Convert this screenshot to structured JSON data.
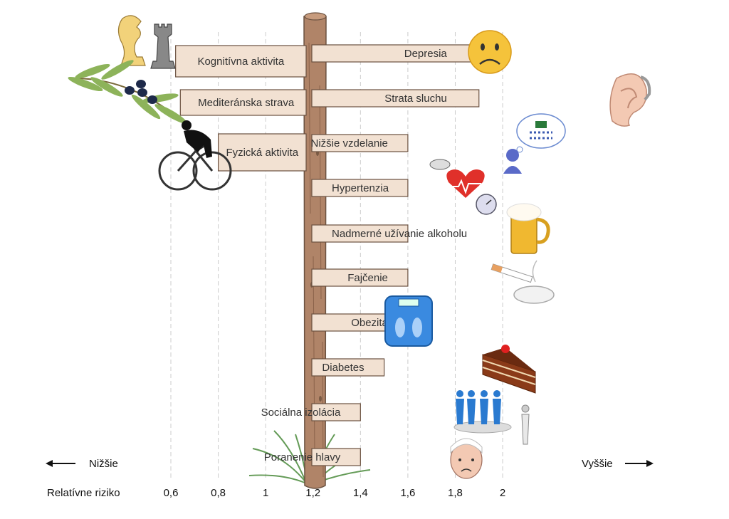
{
  "chart_data": {
    "type": "bar",
    "xlabel": "Relatívne riziko",
    "baseline": 1,
    "xlim": [
      0.6,
      2
    ],
    "xticks": [
      "0,6",
      "0,8",
      "1",
      "1,2",
      "1,4",
      "1,6",
      "1,8",
      "2"
    ],
    "xtick_values": [
      0.6,
      0.8,
      1,
      1.2,
      1.4,
      1.6,
      1.8,
      2
    ],
    "grid": true,
    "direction_labels": {
      "lower": "Nižšie",
      "higher": "Vyššie"
    },
    "colors": {
      "bar_fill": "#f2e1d2",
      "bar_stroke": "#6a5140",
      "grid": "#cccccc",
      "post": "#b08468"
    },
    "bars": [
      {
        "label": "Kognitívna aktivita",
        "value": 0.62,
        "icon": "chess-icon"
      },
      {
        "label": "Mediteránska strava",
        "value": 0.64,
        "icon": "olive-branch-icon"
      },
      {
        "label": "Fyzická aktivita",
        "value": 0.8,
        "icon": "cyclist-icon"
      },
      {
        "label": "Depresia",
        "value": 1.9,
        "icon": "sad-face-icon"
      },
      {
        "label": "Strata sluchu",
        "value": 1.9,
        "icon": "ear-icon"
      },
      {
        "label": "Nižšie vzdelanie",
        "value": 1.6,
        "icon": "thought-bubble-icon"
      },
      {
        "label": "Hypertenzia",
        "value": 1.6,
        "icon": "heart-pressure-icon"
      },
      {
        "label": "Nadmerné užívanie alkoholu",
        "value": 1.6,
        "icon": "beer-icon"
      },
      {
        "label": "Fajčenie",
        "value": 1.6,
        "icon": "cigarette-icon"
      },
      {
        "label": "Obezita",
        "value": 1.6,
        "icon": "scale-icon"
      },
      {
        "label": "Diabetes",
        "value": 1.5,
        "icon": "cake-icon"
      },
      {
        "label": "Sociálna izolácia",
        "value": 1.4,
        "icon": "crowd-icon"
      },
      {
        "label": "Poranenie hlavy",
        "value": 1.4,
        "icon": "injured-head-icon"
      }
    ]
  }
}
